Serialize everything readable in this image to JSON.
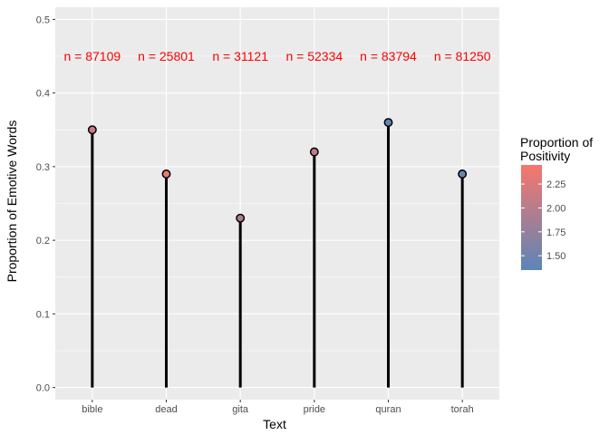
{
  "chart_data": {
    "type": "lollipop",
    "xlabel": "Text",
    "ylabel": "Proportion of Emotive Words",
    "categories": [
      "bible",
      "dead",
      "gita",
      "pride",
      "quran",
      "torah"
    ],
    "values": [
      0.35,
      0.29,
      0.23,
      0.32,
      0.36,
      0.29
    ],
    "positivity": [
      2.1,
      2.37,
      1.95,
      2.05,
      1.4,
      1.45
    ],
    "count_labels": [
      "n = 87109",
      "n = 25801",
      "n = 31121",
      "n = 52334",
      "n = 83794",
      "n = 81250"
    ],
    "count_label_y": 0.45,
    "ylim": [
      -0.0165,
      0.5165
    ],
    "yticks": [
      0.0,
      0.1,
      0.2,
      0.3,
      0.4,
      0.5
    ],
    "ytick_labels": [
      "0.0",
      "0.1",
      "0.2",
      "0.3",
      "0.4",
      "0.5"
    ],
    "grid": true,
    "legend": {
      "title": [
        "Proportion of",
        "Positivity"
      ],
      "position": "right",
      "type": "colorbar",
      "range": [
        1.35,
        2.45
      ],
      "ticks": [
        1.5,
        1.75,
        2.0,
        2.25
      ],
      "tick_labels": [
        "1.50",
        "1.75",
        "2.00",
        "2.25"
      ],
      "low_color": "#56B1F7",
      "low_color_display": "#5A86B8",
      "high_color": "#F8766D"
    },
    "colors": {
      "panel_bg": "#EBEBEB",
      "grid": "#FFFFFF",
      "stem": "#000000",
      "count_label": "#FF0000"
    }
  }
}
